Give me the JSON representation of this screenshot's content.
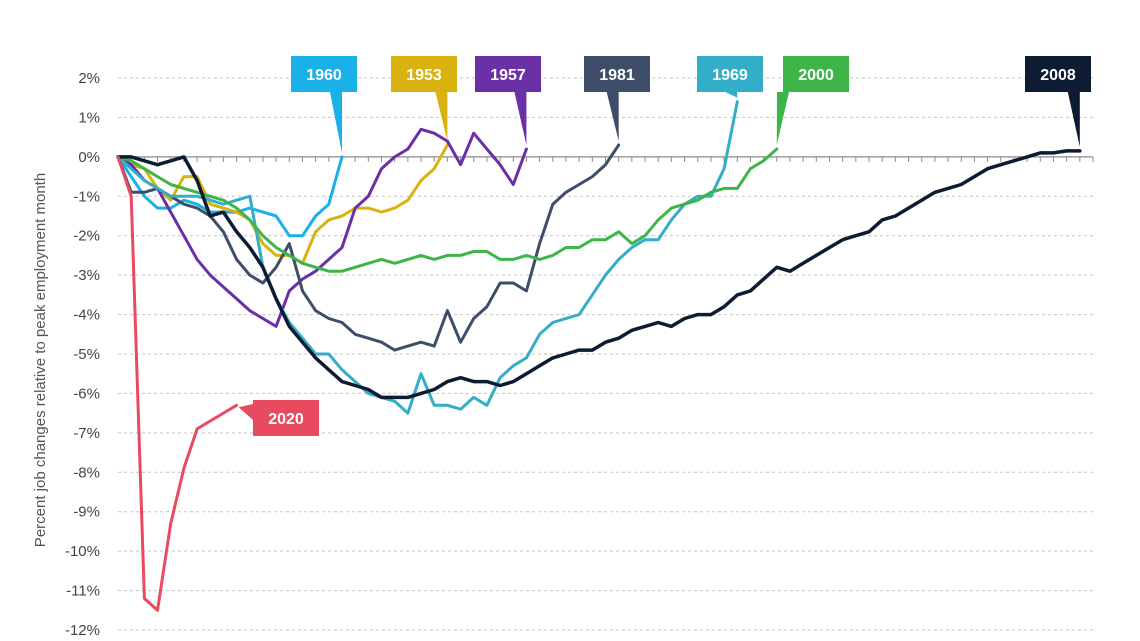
{
  "chart_data": {
    "type": "line",
    "title": "",
    "xlabel": "",
    "ylabel": "Percent job changes relative to peak employment month",
    "ylim": [
      -12,
      2
    ],
    "xlim": [
      0,
      74
    ],
    "yticks": [
      2,
      1,
      0,
      -1,
      -2,
      -3,
      -4,
      -5,
      -6,
      -7,
      -8,
      -9,
      -10,
      -11,
      -12
    ],
    "ytick_labels": [
      "2%",
      "1%",
      "0%",
      "-1%",
      "-2%",
      "-3%",
      "-4%",
      "-5%",
      "-6%",
      "-7%",
      "-8%",
      "-9%",
      "-10%",
      "-11%",
      "-12%"
    ],
    "grid": true,
    "series": [
      {
        "name": "1960",
        "color": "#1ab0e8",
        "width": 3,
        "x": [
          0,
          1,
          2,
          3,
          4,
          5,
          6,
          7,
          8,
          9,
          10,
          11,
          12,
          13,
          14,
          15,
          16,
          17
        ],
        "values": [
          0,
          -0.5,
          -1.0,
          -1.3,
          -1.3,
          -1.1,
          -1.2,
          -1.4,
          -1.4,
          -1.4,
          -1.3,
          -1.4,
          -1.5,
          -2.0,
          -2.0,
          -1.5,
          -1.2,
          0.0
        ]
      },
      {
        "name": "1953",
        "color": "#d9b20f",
        "width": 3,
        "x": [
          0,
          1,
          2,
          3,
          4,
          5,
          6,
          7,
          8,
          9,
          10,
          11,
          12,
          13,
          14,
          15,
          16,
          17,
          18,
          19,
          20,
          21,
          22,
          23,
          24,
          25
        ],
        "values": [
          0,
          -0.2,
          -0.3,
          -0.8,
          -1.1,
          -0.5,
          -0.5,
          -1.2,
          -1.3,
          -1.4,
          -1.6,
          -2.2,
          -2.5,
          -2.5,
          -2.7,
          -1.9,
          -1.6,
          -1.5,
          -1.3,
          -1.3,
          -1.4,
          -1.3,
          -1.1,
          -0.6,
          -0.3,
          0.3
        ]
      },
      {
        "name": "1957",
        "color": "#6b2fa6",
        "width": 3,
        "x": [
          0,
          1,
          2,
          3,
          4,
          5,
          6,
          7,
          8,
          9,
          10,
          11,
          12,
          13,
          14,
          15,
          16,
          17,
          18,
          19,
          20,
          21,
          22,
          23,
          24,
          25,
          26,
          27,
          28,
          29,
          30,
          31
        ],
        "values": [
          0,
          -0.2,
          -0.6,
          -0.8,
          -1.4,
          -2.0,
          -2.6,
          -3.0,
          -3.3,
          -3.6,
          -3.9,
          -4.1,
          -4.3,
          -3.4,
          -3.1,
          -2.9,
          -2.6,
          -2.3,
          -1.3,
          -1.0,
          -0.3,
          0.0,
          0.2,
          0.7,
          0.6,
          0.4,
          -0.2,
          0.6,
          0.2,
          -0.2,
          -0.7,
          0.2
        ]
      },
      {
        "name": "1981",
        "color": "#3e4e68",
        "width": 3,
        "x": [
          0,
          1,
          2,
          3,
          4,
          5,
          6,
          7,
          8,
          9,
          10,
          11,
          12,
          13,
          14,
          15,
          16,
          17,
          18,
          19,
          20,
          21,
          22,
          23,
          24,
          25,
          26,
          27,
          28,
          29,
          30,
          31,
          32,
          33,
          34,
          35,
          36,
          37,
          38
        ],
        "values": [
          0,
          -0.9,
          -0.9,
          -0.8,
          -1.0,
          -1.2,
          -1.3,
          -1.5,
          -1.9,
          -2.6,
          -3.0,
          -3.2,
          -2.8,
          -2.2,
          -3.4,
          -3.9,
          -4.1,
          -4.2,
          -4.5,
          -4.6,
          -4.7,
          -4.9,
          -4.8,
          -4.7,
          -4.8,
          -3.9,
          -4.7,
          -4.1,
          -3.8,
          -3.2,
          -3.2,
          -3.4,
          -2.2,
          -1.2,
          -0.9,
          -0.7,
          -0.5,
          -0.2,
          0.3
        ]
      },
      {
        "name": "1969",
        "color": "#33aec9",
        "width": 3,
        "x": [
          0,
          1,
          2,
          3,
          4,
          5,
          6,
          7,
          8,
          9,
          10,
          11,
          12,
          13,
          14,
          15,
          16,
          17,
          18,
          19,
          20,
          21,
          22,
          23,
          24,
          25,
          26,
          27,
          28,
          29,
          30,
          31,
          32,
          33,
          34,
          35,
          36,
          37,
          38,
          39,
          40,
          41,
          42,
          43,
          44,
          45,
          46,
          47
        ],
        "values": [
          0,
          -0.3,
          -0.6,
          -0.8,
          -1.0,
          -1.0,
          -1.0,
          -1.1,
          -1.2,
          -1.1,
          -1.0,
          -2.8,
          -3.6,
          -4.2,
          -4.6,
          -5.0,
          -5.0,
          -5.4,
          -5.7,
          -6.0,
          -6.1,
          -6.2,
          -6.5,
          -5.5,
          -6.3,
          -6.3,
          -6.4,
          -6.1,
          -6.3,
          -5.6,
          -5.3,
          -5.1,
          -4.5,
          -4.2,
          -4.1,
          -4.0,
          -3.5,
          -3.0,
          -2.6,
          -2.3,
          -2.1,
          -2.1,
          -1.6,
          -1.2,
          -1.0,
          -1.0,
          -0.3,
          1.4
        ]
      },
      {
        "name": "2000",
        "color": "#3db549",
        "width": 3,
        "x": [
          0,
          1,
          2,
          3,
          4,
          5,
          6,
          7,
          8,
          9,
          10,
          11,
          12,
          13,
          14,
          15,
          16,
          17,
          18,
          19,
          20,
          21,
          22,
          23,
          24,
          25,
          26,
          27,
          28,
          29,
          30,
          31,
          32,
          33,
          34,
          35,
          36,
          37,
          38,
          39,
          40,
          41,
          42,
          43,
          44,
          45,
          46,
          47,
          48,
          49,
          50
        ],
        "values": [
          0,
          -0.1,
          -0.3,
          -0.5,
          -0.7,
          -0.8,
          -0.9,
          -1.0,
          -1.1,
          -1.3,
          -1.6,
          -2.0,
          -2.3,
          -2.5,
          -2.7,
          -2.8,
          -2.9,
          -2.9,
          -2.8,
          -2.7,
          -2.6,
          -2.7,
          -2.6,
          -2.5,
          -2.6,
          -2.5,
          -2.5,
          -2.4,
          -2.4,
          -2.6,
          -2.6,
          -2.5,
          -2.6,
          -2.5,
          -2.3,
          -2.3,
          -2.1,
          -2.1,
          -1.9,
          -2.2,
          -2.0,
          -1.6,
          -1.3,
          -1.2,
          -1.1,
          -0.9,
          -0.8,
          -0.8,
          -0.3,
          -0.1,
          0.2
        ]
      },
      {
        "name": "2008",
        "color": "#0d1b33",
        "width": 3.5,
        "x": [
          0,
          1,
          2,
          3,
          4,
          5,
          6,
          7,
          8,
          9,
          10,
          11,
          12,
          13,
          14,
          15,
          16,
          17,
          18,
          19,
          20,
          21,
          22,
          23,
          24,
          25,
          26,
          27,
          28,
          29,
          30,
          31,
          32,
          33,
          34,
          35,
          36,
          37,
          38,
          39,
          40,
          41,
          42,
          43,
          44,
          45,
          46,
          47,
          48,
          49,
          50,
          51,
          52,
          53,
          54,
          55,
          56,
          57,
          58,
          59,
          60,
          61,
          62,
          63,
          64,
          65,
          66,
          67,
          68,
          69,
          70,
          71,
          72,
          73
        ],
        "values": [
          0,
          0,
          -0.1,
          -0.2,
          -0.1,
          0,
          -0.6,
          -1.5,
          -1.4,
          -1.9,
          -2.3,
          -2.8,
          -3.6,
          -4.3,
          -4.7,
          -5.1,
          -5.4,
          -5.7,
          -5.8,
          -5.9,
          -6.1,
          -6.1,
          -6.1,
          -6.0,
          -5.9,
          -5.7,
          -5.6,
          -5.7,
          -5.7,
          -5.8,
          -5.7,
          -5.5,
          -5.3,
          -5.1,
          -5.0,
          -4.9,
          -4.9,
          -4.7,
          -4.6,
          -4.4,
          -4.3,
          -4.2,
          -4.3,
          -4.1,
          -4.0,
          -4.0,
          -3.8,
          -3.5,
          -3.4,
          -3.1,
          -2.8,
          -2.9,
          -2.7,
          -2.5,
          -2.3,
          -2.1,
          -2.0,
          -1.9,
          -1.6,
          -1.5,
          -1.3,
          -1.1,
          -0.9,
          -0.8,
          -0.7,
          -0.5,
          -0.3,
          -0.2,
          -0.1,
          0.0,
          0.1,
          0.1,
          0.15,
          0.15
        ]
      },
      {
        "name": "2020",
        "color": "#e84a5f",
        "width": 3,
        "x": [
          0,
          1,
          2,
          3,
          4,
          5,
          6,
          7,
          8,
          9
        ],
        "values": [
          0,
          -1.0,
          -11.2,
          -11.5,
          -9.3,
          -7.9,
          -6.9,
          -6.7,
          -6.5,
          -6.3
        ]
      }
    ],
    "annotations": [
      {
        "label": "1960",
        "series": "1960",
        "color": "#1ab0e8"
      },
      {
        "label": "1953",
        "series": "1953",
        "color": "#d9b20f"
      },
      {
        "label": "1957",
        "series": "1957",
        "color": "#6b2fa6"
      },
      {
        "label": "1981",
        "series": "1981",
        "color": "#3e4e68"
      },
      {
        "label": "1969",
        "series": "1969",
        "color": "#33aec9"
      },
      {
        "label": "2000",
        "series": "2000",
        "color": "#3db549"
      },
      {
        "label": "2008",
        "series": "2008",
        "color": "#0d1b33"
      },
      {
        "label": "2020",
        "series": "2020",
        "color": "#e84a5f"
      }
    ]
  }
}
